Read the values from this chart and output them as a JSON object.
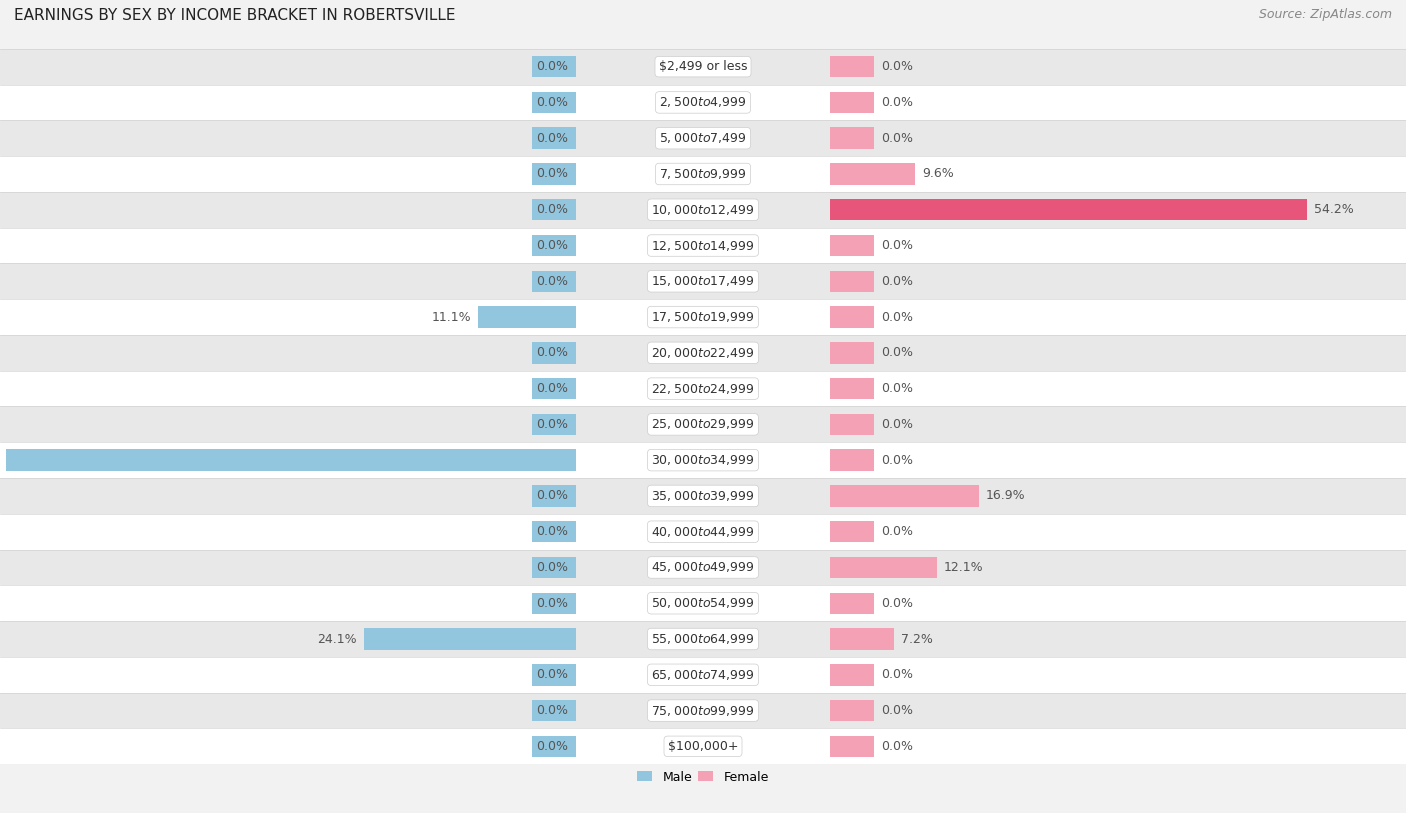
{
  "title": "EARNINGS BY SEX BY INCOME BRACKET IN ROBERTSVILLE",
  "source": "Source: ZipAtlas.com",
  "categories": [
    "$2,499 or less",
    "$2,500 to $4,999",
    "$5,000 to $7,499",
    "$7,500 to $9,999",
    "$10,000 to $12,499",
    "$12,500 to $14,999",
    "$15,000 to $17,499",
    "$17,500 to $19,999",
    "$20,000 to $22,499",
    "$22,500 to $24,999",
    "$25,000 to $29,999",
    "$30,000 to $34,999",
    "$35,000 to $39,999",
    "$40,000 to $44,999",
    "$45,000 to $49,999",
    "$50,000 to $54,999",
    "$55,000 to $64,999",
    "$65,000 to $74,999",
    "$75,000 to $99,999",
    "$100,000+"
  ],
  "male_values": [
    0.0,
    0.0,
    0.0,
    0.0,
    0.0,
    0.0,
    0.0,
    11.1,
    0.0,
    0.0,
    0.0,
    64.8,
    0.0,
    0.0,
    0.0,
    0.0,
    24.1,
    0.0,
    0.0,
    0.0
  ],
  "female_values": [
    0.0,
    0.0,
    0.0,
    9.6,
    54.2,
    0.0,
    0.0,
    0.0,
    0.0,
    0.0,
    0.0,
    0.0,
    16.9,
    0.0,
    12.1,
    0.0,
    7.2,
    0.0,
    0.0,
    0.0
  ],
  "male_color": "#92C5DE",
  "female_color": "#F4A0B5",
  "female_color_bright": "#E8557A",
  "male_label_color": "#555555",
  "female_label_color": "#555555",
  "axis_max": 80.0,
  "background_color": "#f2f2f2",
  "row_bg_odd": "#ffffff",
  "row_bg_even": "#e8e8e8",
  "bar_height": 0.6,
  "min_bar": 5.0,
  "title_fontsize": 11,
  "source_fontsize": 9,
  "label_fontsize": 9,
  "tick_fontsize": 9,
  "category_fontsize": 9
}
